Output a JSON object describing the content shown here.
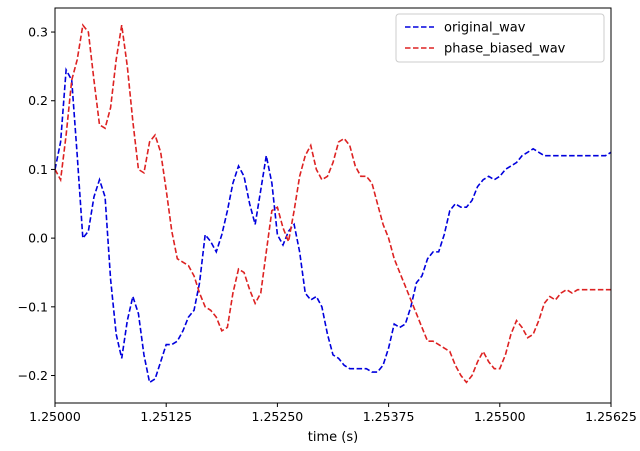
{
  "chart_data": {
    "type": "line",
    "title": "",
    "xlabel": "time (s)",
    "ylabel": "",
    "xlim": [
      1.25,
      1.25625
    ],
    "ylim": [
      -0.24,
      0.335
    ],
    "grid": false,
    "legend_position": "top-right",
    "x_ticks": [
      {
        "value": 1.25,
        "label": "1.25000"
      },
      {
        "value": 1.25125,
        "label": "1.25125"
      },
      {
        "value": 1.2525,
        "label": "1.25250"
      },
      {
        "value": 1.25375,
        "label": "1.25375"
      },
      {
        "value": 1.255,
        "label": "1.25500"
      },
      {
        "value": 1.25625,
        "label": "1.25625"
      }
    ],
    "y_ticks": [
      {
        "value": -0.2,
        "label": "−0.2"
      },
      {
        "value": -0.1,
        "label": "−0.1"
      },
      {
        "value": 0.0,
        "label": "0.0"
      },
      {
        "value": 0.1,
        "label": "0.1"
      },
      {
        "value": 0.2,
        "label": "0.2"
      },
      {
        "value": 0.3,
        "label": "0.3"
      }
    ],
    "series": [
      {
        "name": "original_wav",
        "color": "#0000dd",
        "style": "dashed",
        "x": [
          1.25,
          1.250063,
          1.250125,
          1.250188,
          1.25025,
          1.250313,
          1.250375,
          1.250438,
          1.2505,
          1.250563,
          1.250625,
          1.250688,
          1.25075,
          1.250813,
          1.250875,
          1.250938,
          1.251,
          1.251063,
          1.251125,
          1.251188,
          1.25125,
          1.251313,
          1.251375,
          1.251438,
          1.2515,
          1.251563,
          1.251625,
          1.251688,
          1.25175,
          1.251813,
          1.251875,
          1.251938,
          1.252,
          1.252063,
          1.252125,
          1.252188,
          1.25225,
          1.252313,
          1.252375,
          1.252438,
          1.2525,
          1.252563,
          1.252625,
          1.252688,
          1.25275,
          1.252813,
          1.252875,
          1.252938,
          1.253,
          1.253063,
          1.253125,
          1.253188,
          1.25325,
          1.253313,
          1.253375,
          1.253438,
          1.2535,
          1.253563,
          1.253625,
          1.253688,
          1.25375,
          1.253813,
          1.253875,
          1.253938,
          1.254,
          1.254063,
          1.254125,
          1.254188,
          1.25425,
          1.254313,
          1.254375,
          1.254438,
          1.2545,
          1.254563,
          1.254625,
          1.254688,
          1.25475,
          1.254813,
          1.254875,
          1.254938,
          1.255,
          1.255063,
          1.255125,
          1.255188,
          1.25525,
          1.255313,
          1.255375,
          1.255438,
          1.2555,
          1.255563,
          1.255625,
          1.255688,
          1.25575,
          1.255813,
          1.255875,
          1.255938,
          1.256,
          1.256063,
          1.256125,
          1.256188,
          1.25625
        ],
        "values": [
          0.1,
          0.14,
          0.245,
          0.23,
          0.12,
          0.0,
          0.01,
          0.06,
          0.085,
          0.06,
          -0.06,
          -0.14,
          -0.175,
          -0.12,
          -0.085,
          -0.11,
          -0.17,
          -0.21,
          -0.205,
          -0.18,
          -0.155,
          -0.155,
          -0.15,
          -0.135,
          -0.115,
          -0.105,
          -0.065,
          0.005,
          -0.005,
          -0.02,
          0.005,
          0.04,
          0.08,
          0.105,
          0.09,
          0.05,
          0.02,
          0.07,
          0.12,
          0.08,
          0.005,
          -0.01,
          0.01,
          0.02,
          -0.02,
          -0.08,
          -0.09,
          -0.085,
          -0.1,
          -0.14,
          -0.17,
          -0.175,
          -0.185,
          -0.19,
          -0.19,
          -0.19,
          -0.19,
          -0.195,
          -0.195,
          -0.185,
          -0.16,
          -0.125,
          -0.13,
          -0.125,
          -0.1,
          -0.065,
          -0.055,
          -0.03,
          -0.02,
          -0.02,
          0.005,
          0.04,
          0.05,
          0.045,
          0.045,
          0.055,
          0.075,
          0.085,
          0.09,
          0.085,
          0.09,
          0.1,
          0.105,
          0.11,
          0.12,
          0.125,
          0.13,
          0.125,
          0.12,
          0.12,
          0.12,
          0.12,
          0.12,
          0.12,
          0.12,
          0.12,
          0.12,
          0.12,
          0.12,
          0.12,
          0.125
        ]
      },
      {
        "name": "phase_biased_wav",
        "color": "#dd2222",
        "style": "dashed",
        "x": [
          1.25,
          1.250063,
          1.250125,
          1.250188,
          1.25025,
          1.250313,
          1.250375,
          1.250438,
          1.2505,
          1.250563,
          1.250625,
          1.250688,
          1.25075,
          1.250813,
          1.250875,
          1.250938,
          1.251,
          1.251063,
          1.251125,
          1.251188,
          1.25125,
          1.251313,
          1.251375,
          1.251438,
          1.2515,
          1.251563,
          1.251625,
          1.251688,
          1.25175,
          1.251813,
          1.251875,
          1.251938,
          1.252,
          1.252063,
          1.252125,
          1.252188,
          1.25225,
          1.252313,
          1.252375,
          1.252438,
          1.2525,
          1.252563,
          1.252625,
          1.252688,
          1.25275,
          1.252813,
          1.252875,
          1.252938,
          1.253,
          1.253063,
          1.253125,
          1.253188,
          1.25325,
          1.253313,
          1.253375,
          1.253438,
          1.2535,
          1.253563,
          1.253625,
          1.253688,
          1.25375,
          1.253813,
          1.253875,
          1.253938,
          1.254,
          1.254063,
          1.254125,
          1.254188,
          1.25425,
          1.254313,
          1.254375,
          1.254438,
          1.2545,
          1.254563,
          1.254625,
          1.254688,
          1.25475,
          1.254813,
          1.254875,
          1.254938,
          1.255,
          1.255063,
          1.255125,
          1.255188,
          1.25525,
          1.255313,
          1.255375,
          1.255438,
          1.2555,
          1.255563,
          1.255625,
          1.255688,
          1.25575,
          1.255813,
          1.255875,
          1.255938,
          1.256,
          1.256063,
          1.256125,
          1.256188,
          1.25625
        ],
        "values": [
          0.1,
          0.085,
          0.15,
          0.23,
          0.26,
          0.31,
          0.3,
          0.23,
          0.165,
          0.16,
          0.19,
          0.26,
          0.31,
          0.25,
          0.17,
          0.1,
          0.095,
          0.14,
          0.15,
          0.125,
          0.07,
          0.01,
          -0.03,
          -0.035,
          -0.04,
          -0.055,
          -0.08,
          -0.1,
          -0.105,
          -0.115,
          -0.135,
          -0.13,
          -0.08,
          -0.045,
          -0.05,
          -0.075,
          -0.095,
          -0.08,
          -0.02,
          0.04,
          0.045,
          0.015,
          -0.005,
          0.04,
          0.09,
          0.12,
          0.135,
          0.1,
          0.085,
          0.09,
          0.11,
          0.14,
          0.145,
          0.135,
          0.105,
          0.09,
          0.09,
          0.08,
          0.05,
          0.02,
          0.0,
          -0.03,
          -0.05,
          -0.07,
          -0.09,
          -0.11,
          -0.13,
          -0.15,
          -0.15,
          -0.155,
          -0.16,
          -0.165,
          -0.185,
          -0.2,
          -0.21,
          -0.2,
          -0.18,
          -0.165,
          -0.18,
          -0.19,
          -0.19,
          -0.17,
          -0.14,
          -0.12,
          -0.13,
          -0.145,
          -0.14,
          -0.12,
          -0.095,
          -0.085,
          -0.09,
          -0.08,
          -0.075,
          -0.08,
          -0.075,
          -0.075,
          -0.075,
          -0.075,
          -0.075,
          -0.075,
          -0.075
        ]
      }
    ]
  }
}
